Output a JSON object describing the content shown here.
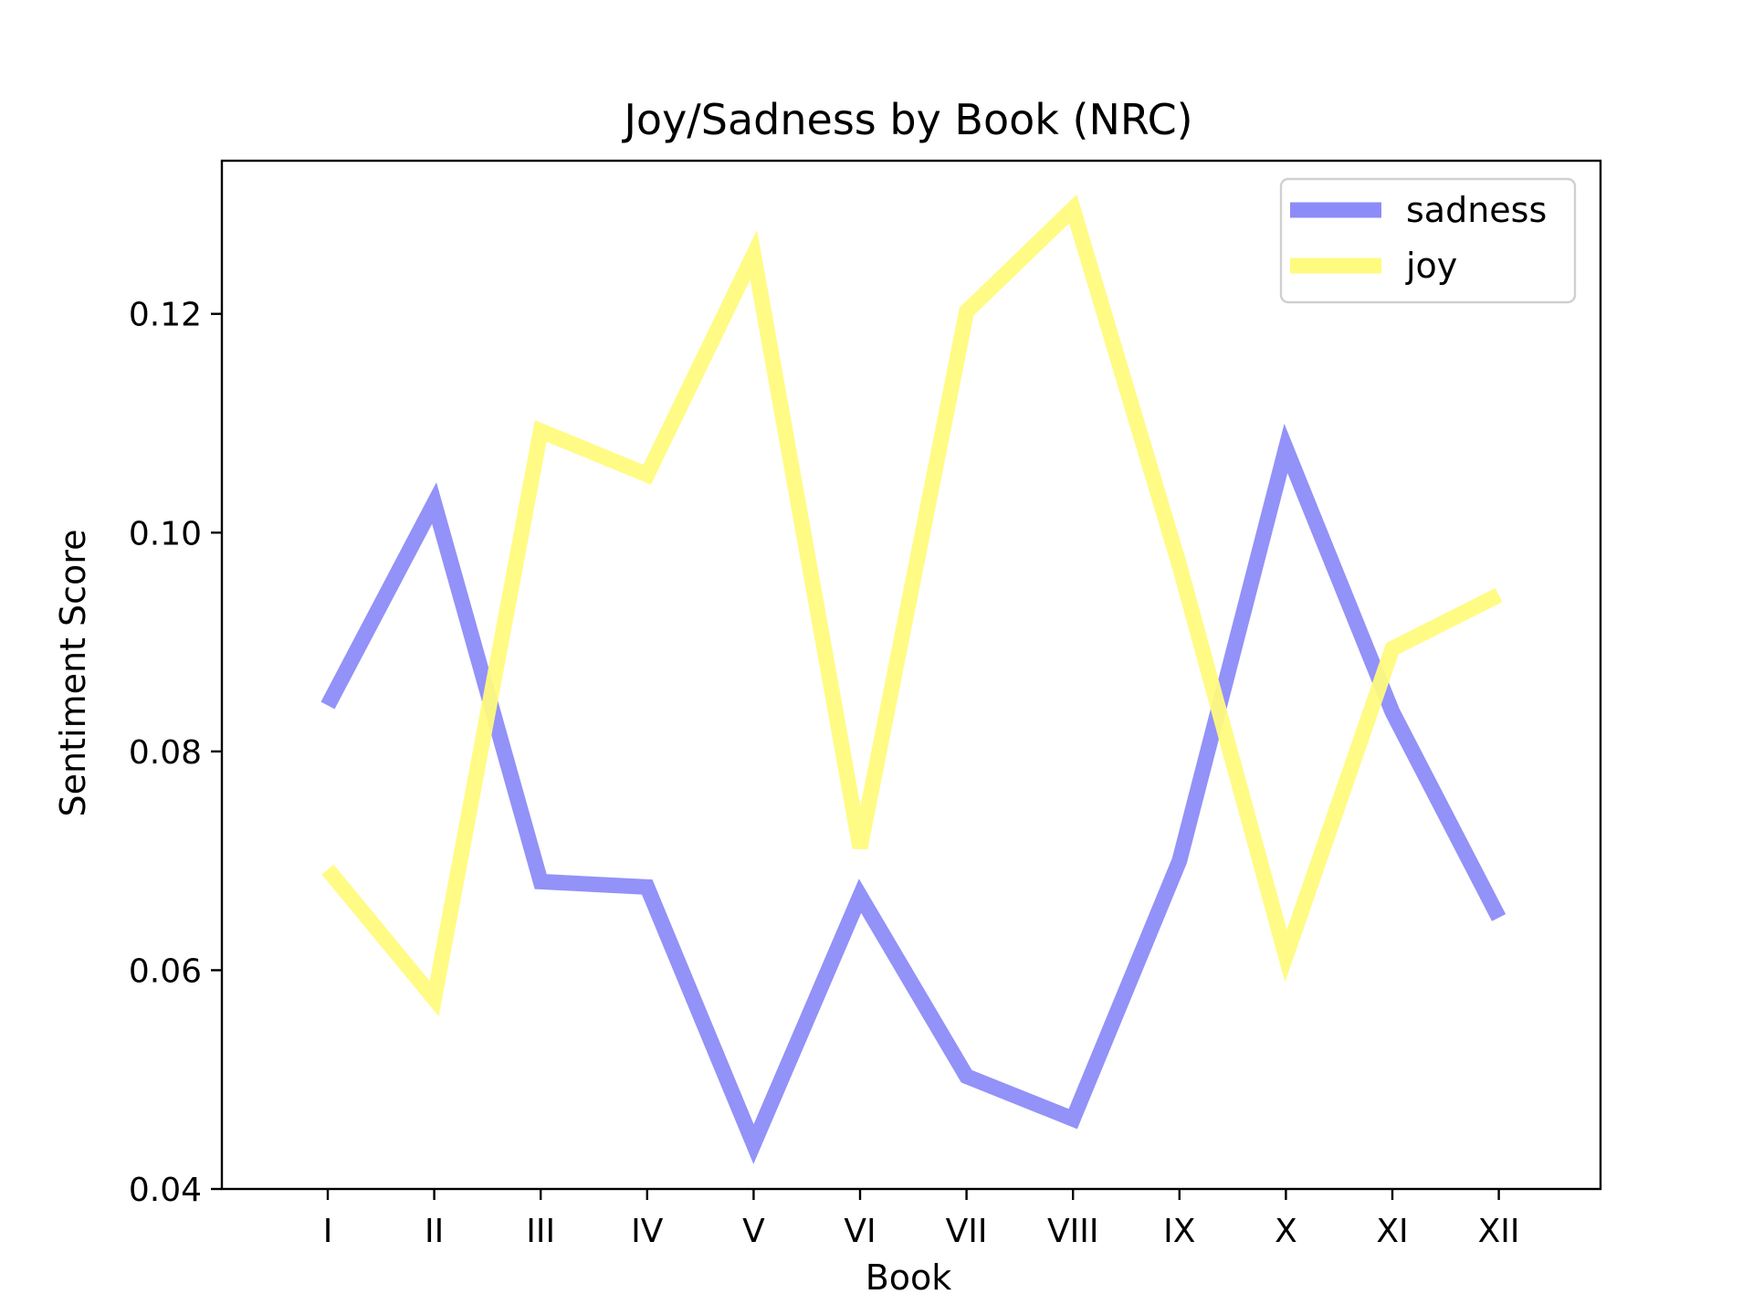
{
  "chart_data": {
    "type": "line",
    "title": "Joy/Sadness by Book (NRC)",
    "xlabel": "Book",
    "ylabel": "Sentiment Score",
    "categories": [
      "I",
      "II",
      "III",
      "IV",
      "V",
      "VI",
      "VII",
      "VIII",
      "IX",
      "X",
      "XI",
      "XII"
    ],
    "ylim": [
      0.04,
      0.134
    ],
    "yticks": [
      0.04,
      0.06,
      0.08,
      0.1,
      0.12
    ],
    "ytick_labels": [
      "0.04",
      "0.06",
      "0.08",
      "0.10",
      "0.12"
    ],
    "grid": false,
    "legend_position": "top-right",
    "series": [
      {
        "name": "sadness",
        "color": "#8c8cf8",
        "values": [
          0.0842,
          0.1027,
          0.0681,
          0.0676,
          0.0441,
          0.0668,
          0.0503,
          0.0464,
          0.07,
          0.1077,
          0.0836,
          0.0648
        ]
      },
      {
        "name": "joy",
        "color": "#fffb7e",
        "values": [
          0.0692,
          0.0574,
          0.1093,
          0.1053,
          0.1254,
          0.0712,
          0.1202,
          0.1296,
          0.097,
          0.0613,
          0.0894,
          0.0943
        ]
      }
    ]
  }
}
